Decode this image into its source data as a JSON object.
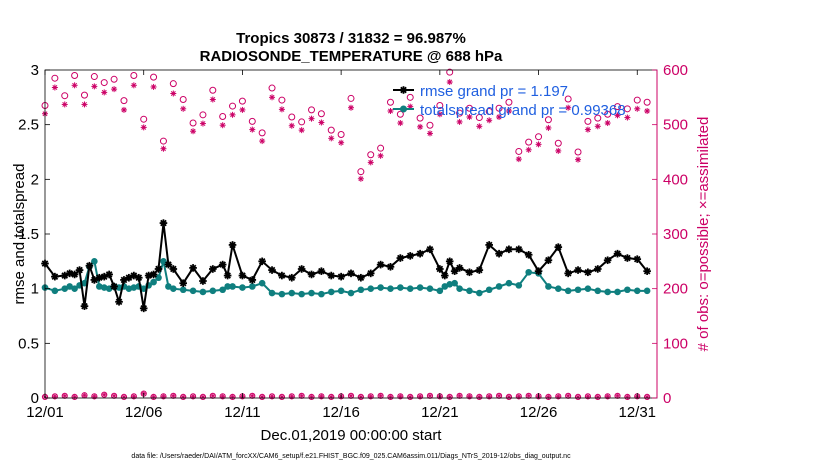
{
  "chart_data": {
    "type": "line",
    "title": "Tropics 30873 / 31832 = 96.987%",
    "subtitle": "RADIOSONDE_TEMPERATURE @ 688 hPa",
    "xlabel": "Dec.01,2019 00:00:00 start",
    "ylabel_left": "rmse and totalspread",
    "ylabel_right": "# of obs: o=possible; ×=assimilated",
    "footer": "data file: /Users/raeder/DAI/ATM_forcXX/CAM6_setup/f.e21.FHIST_BGC.f09_025.CAM6assim.011/Diags_NTrS_2019-12/obs_diag_output.nc",
    "xlim": [
      0,
      31
    ],
    "ylim_left": [
      0,
      3
    ],
    "ylim_right": [
      0,
      600
    ],
    "x_tick_labels": [
      "12/01",
      "12/06",
      "12/11",
      "12/16",
      "12/21",
      "12/26",
      "12/31"
    ],
    "x_tick_positions": [
      0,
      5,
      10,
      15,
      20,
      25,
      30
    ],
    "y_left_ticks": [
      "0",
      "0.5",
      "1",
      "1.5",
      "2",
      "2.5",
      "3"
    ],
    "y_right_ticks": [
      "0",
      "100",
      "200",
      "300",
      "400",
      "500",
      "600"
    ],
    "legend": {
      "location": "top-right",
      "entries": [
        "rmse grand pr = 1.197",
        "totalspread grand pr = 0.99368"
      ]
    },
    "colors": {
      "rmse": "#000000",
      "spread": "#0f7f7f",
      "obs": "#cc0066",
      "legend_text": "#1f5fe0"
    },
    "series": [
      {
        "name": "rmse",
        "axis": "left",
        "style": "star-line",
        "x": [
          0.0,
          0.5,
          1.0,
          1.25,
          1.5,
          1.75,
          2.0,
          2.25,
          2.5,
          2.75,
          3.0,
          3.25,
          3.5,
          3.75,
          4.0,
          4.25,
          4.5,
          4.75,
          5.0,
          5.25,
          5.5,
          5.75,
          6.0,
          6.25,
          6.5,
          7.0,
          7.5,
          8.0,
          8.5,
          9.0,
          9.25,
          9.5,
          10.0,
          10.5,
          11.0,
          11.5,
          12.0,
          12.5,
          13.0,
          13.5,
          14.0,
          14.5,
          15.0,
          15.5,
          16.0,
          16.5,
          17.0,
          17.5,
          18.0,
          18.5,
          19.0,
          19.5,
          20.0,
          20.25,
          20.5,
          20.75,
          21.0,
          21.5,
          22.0,
          22.5,
          23.0,
          23.5,
          24.0,
          24.5,
          25.0,
          25.5,
          26.0,
          26.5,
          27.0,
          27.5,
          28.0,
          28.5,
          29.0,
          29.5,
          30.0,
          30.5
        ],
        "values": [
          1.23,
          1.11,
          1.12,
          1.14,
          1.13,
          1.17,
          0.84,
          1.21,
          1.08,
          1.1,
          1.11,
          1.13,
          1.02,
          0.88,
          1.08,
          1.1,
          1.12,
          1.1,
          0.82,
          1.12,
          1.13,
          1.18,
          1.6,
          1.22,
          1.18,
          1.05,
          1.19,
          1.07,
          1.18,
          1.22,
          1.12,
          1.4,
          1.12,
          1.08,
          1.25,
          1.17,
          1.12,
          1.1,
          1.18,
          1.13,
          1.16,
          1.12,
          1.11,
          1.14,
          1.1,
          1.14,
          1.22,
          1.2,
          1.28,
          1.3,
          1.32,
          1.36,
          1.18,
          1.12,
          1.25,
          1.16,
          1.19,
          1.15,
          1.17,
          1.4,
          1.32,
          1.36,
          1.36,
          1.31,
          1.16,
          1.26,
          1.38,
          1.14,
          1.17,
          1.15,
          1.18,
          1.26,
          1.32,
          1.28,
          1.27,
          1.16
        ]
      },
      {
        "name": "totalspread",
        "axis": "left",
        "style": "dot-line",
        "x": [
          0.0,
          0.5,
          1.0,
          1.25,
          1.5,
          1.75,
          2.0,
          2.25,
          2.5,
          2.75,
          3.0,
          3.25,
          3.5,
          3.75,
          4.0,
          4.25,
          4.5,
          4.75,
          5.0,
          5.25,
          5.5,
          5.75,
          6.0,
          6.25,
          6.5,
          7.0,
          7.5,
          8.0,
          8.5,
          9.0,
          9.25,
          9.5,
          10.0,
          10.5,
          11.0,
          11.5,
          12.0,
          12.5,
          13.0,
          13.5,
          14.0,
          14.5,
          15.0,
          15.5,
          16.0,
          16.5,
          17.0,
          17.5,
          18.0,
          18.5,
          19.0,
          19.5,
          20.0,
          20.25,
          20.5,
          20.75,
          21.0,
          21.5,
          22.0,
          22.5,
          23.0,
          23.5,
          24.0,
          24.5,
          25.0,
          25.5,
          26.0,
          26.5,
          27.0,
          27.5,
          28.0,
          28.5,
          29.0,
          29.5,
          30.0,
          30.5
        ],
        "values": [
          1.01,
          0.98,
          1.0,
          1.02,
          1.0,
          1.03,
          1.05,
          1.2,
          1.25,
          1.02,
          1.01,
          1.0,
          1.02,
          1.01,
          1.02,
          1.0,
          1.01,
          1.02,
          1.0,
          1.03,
          1.06,
          1.1,
          1.25,
          1.02,
          1.0,
          0.99,
          0.98,
          0.97,
          0.98,
          0.99,
          1.02,
          1.02,
          1.01,
          1.02,
          1.05,
          0.96,
          0.95,
          0.96,
          0.95,
          0.96,
          0.95,
          0.97,
          0.98,
          0.96,
          0.99,
          1.0,
          1.01,
          1.0,
          1.01,
          1.0,
          1.01,
          1.0,
          0.98,
          1.02,
          1.04,
          1.05,
          1.0,
          0.98,
          0.96,
          0.99,
          1.02,
          1.05,
          1.03,
          1.15,
          1.14,
          1.02,
          1.0,
          0.98,
          0.99,
          1.0,
          0.98,
          0.97,
          0.97,
          0.99,
          0.98,
          0.98
        ]
      },
      {
        "name": "obs possible",
        "axis": "right",
        "style": "circle",
        "x": [
          0.0,
          0.5,
          1.0,
          1.5,
          2.0,
          2.5,
          3.0,
          3.5,
          4.0,
          4.5,
          5.0,
          5.5,
          6.0,
          6.5,
          7.0,
          7.5,
          8.0,
          8.5,
          9.0,
          9.5,
          10.0,
          10.5,
          11.0,
          11.5,
          12.0,
          12.5,
          13.0,
          13.5,
          14.0,
          14.5,
          15.0,
          15.5,
          16.0,
          16.5,
          17.0,
          17.5,
          18.0,
          18.5,
          19.0,
          19.5,
          20.0,
          20.5,
          21.0,
          21.5,
          22.0,
          22.5,
          23.0,
          23.5,
          24.0,
          24.5,
          25.0,
          25.5,
          26.0,
          26.5,
          27.0,
          27.5,
          28.0,
          28.5,
          29.0,
          29.5,
          30.0,
          30.5
        ],
        "values": [
          535,
          585,
          553,
          590,
          554,
          588,
          577,
          583,
          544,
          590,
          510,
          587,
          470,
          575,
          546,
          503,
          518,
          563,
          515,
          534,
          543,
          506,
          485,
          567,
          545,
          514,
          505,
          527,
          520,
          490,
          482,
          548,
          414,
          445,
          457,
          541,
          519,
          550,
          512,
          499,
          535,
          596,
          521,
          530,
          513,
          524,
          530,
          541,
          451,
          468,
          478,
          509,
          466,
          547,
          450,
          506,
          512,
          519,
          533,
          529,
          545,
          541
        ]
      },
      {
        "name": "obs assimilated",
        "axis": "right",
        "style": "star",
        "x": [
          0.0,
          0.5,
          1.0,
          1.5,
          2.0,
          2.5,
          3.0,
          3.5,
          4.0,
          4.5,
          5.0,
          5.5,
          6.0,
          6.5,
          7.0,
          7.5,
          8.0,
          8.5,
          9.0,
          9.5,
          10.0,
          10.5,
          11.0,
          11.5,
          12.0,
          12.5,
          13.0,
          13.5,
          14.0,
          14.5,
          15.0,
          15.5,
          16.0,
          16.5,
          17.0,
          17.5,
          18.0,
          18.5,
          19.0,
          19.5,
          20.0,
          20.5,
          21.0,
          21.5,
          22.0,
          22.5,
          23.0,
          23.5,
          24.0,
          24.5,
          25.0,
          25.5,
          26.0,
          26.5,
          27.0,
          27.5,
          28.0,
          28.5,
          29.0,
          29.5,
          30.0,
          30.5
        ],
        "values": [
          520,
          568,
          537,
          572,
          537,
          570,
          559,
          565,
          527,
          572,
          495,
          569,
          456,
          557,
          529,
          488,
          502,
          546,
          499,
          518,
          527,
          491,
          470,
          550,
          528,
          498,
          490,
          511,
          504,
          475,
          467,
          531,
          401,
          431,
          443,
          525,
          503,
          533,
          496,
          484,
          519,
          578,
          505,
          514,
          497,
          508,
          514,
          525,
          437,
          454,
          464,
          494,
          452,
          531,
          436,
          491,
          497,
          503,
          517,
          513,
          529,
          525
        ]
      },
      {
        "name": "obs rejected",
        "axis": "right",
        "style": "circle-baseline",
        "x": [
          0.0,
          0.5,
          1.0,
          1.5,
          2.0,
          2.5,
          3.0,
          3.5,
          4.0,
          4.5,
          5.0,
          5.5,
          6.0,
          6.5,
          7.0,
          7.5,
          8.0,
          8.5,
          9.0,
          9.5,
          10.0,
          10.5,
          11.0,
          11.5,
          12.0,
          12.5,
          13.0,
          13.5,
          14.0,
          14.5,
          15.0,
          15.5,
          16.0,
          16.5,
          17.0,
          17.5,
          18.0,
          18.5,
          19.0,
          19.5,
          20.0,
          20.5,
          21.0,
          21.5,
          22.0,
          22.5,
          23.0,
          23.5,
          24.0,
          24.5,
          25.0,
          25.5,
          26.0,
          26.5,
          27.0,
          27.5,
          28.0,
          28.5,
          29.0,
          29.5,
          30.0,
          30.5
        ],
        "values": [
          2,
          3,
          4,
          2,
          5,
          3,
          6,
          4,
          2,
          3,
          8,
          2,
          3,
          4,
          2,
          3,
          2,
          4,
          3,
          2,
          3,
          4,
          2,
          3,
          2,
          3,
          4,
          2,
          3,
          2,
          3,
          4,
          2,
          3,
          4,
          2,
          3,
          2,
          3,
          4,
          3,
          2,
          4,
          3,
          2,
          3,
          4,
          2,
          3,
          4,
          3,
          2,
          3,
          4,
          2,
          3,
          2,
          3,
          4,
          2,
          3,
          2
        ]
      }
    ]
  }
}
